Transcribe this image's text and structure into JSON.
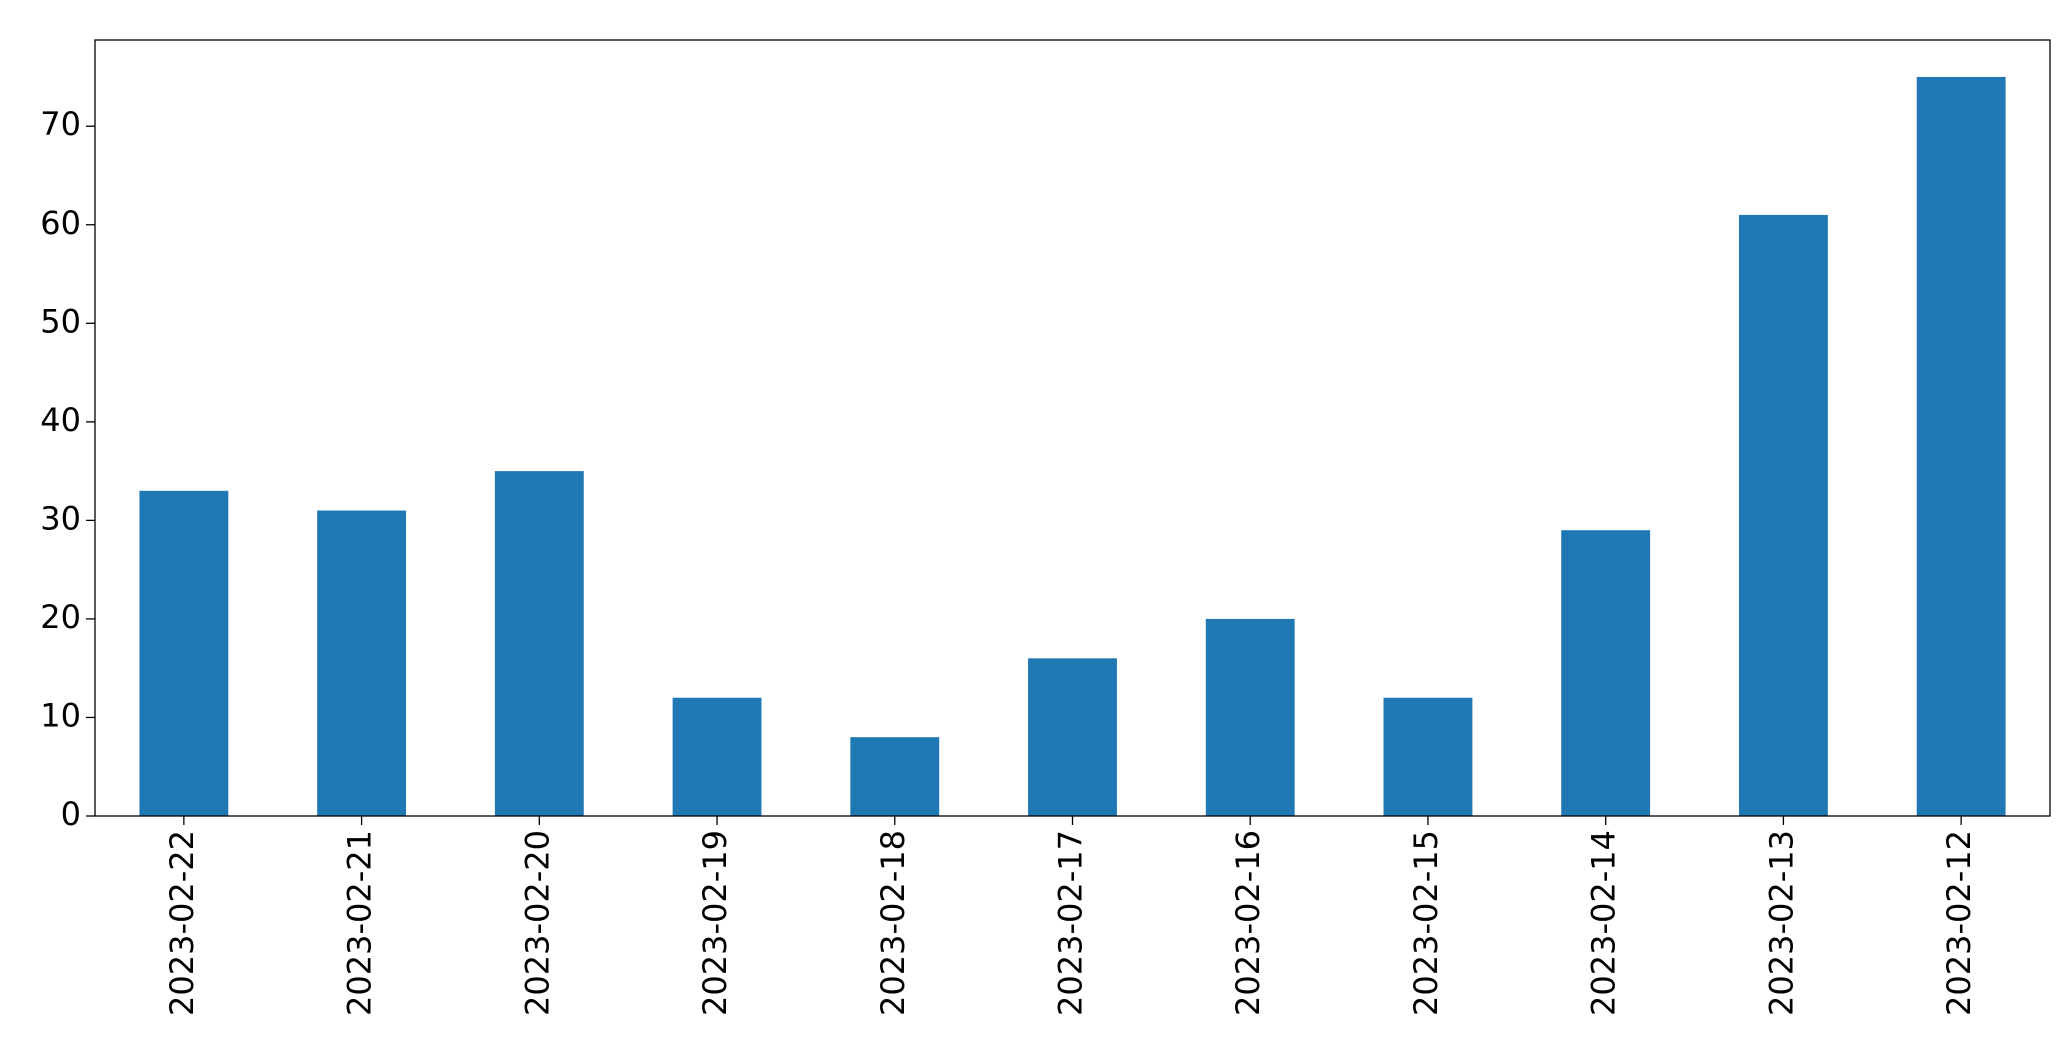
{
  "chart_data": {
    "type": "bar",
    "categories": [
      "2023-02-22",
      "2023-02-21",
      "2023-02-20",
      "2023-02-19",
      "2023-02-18",
      "2023-02-17",
      "2023-02-16",
      "2023-02-15",
      "2023-02-14",
      "2023-02-13",
      "2023-02-12"
    ],
    "values": [
      33,
      31,
      35,
      12,
      8,
      16,
      20,
      12,
      29,
      61,
      75
    ],
    "color": "#1f77b4",
    "ylim": [
      0,
      78.75
    ],
    "yticks": [
      0,
      10,
      20,
      30,
      40,
      50,
      60,
      70
    ],
    "grid": false
  }
}
